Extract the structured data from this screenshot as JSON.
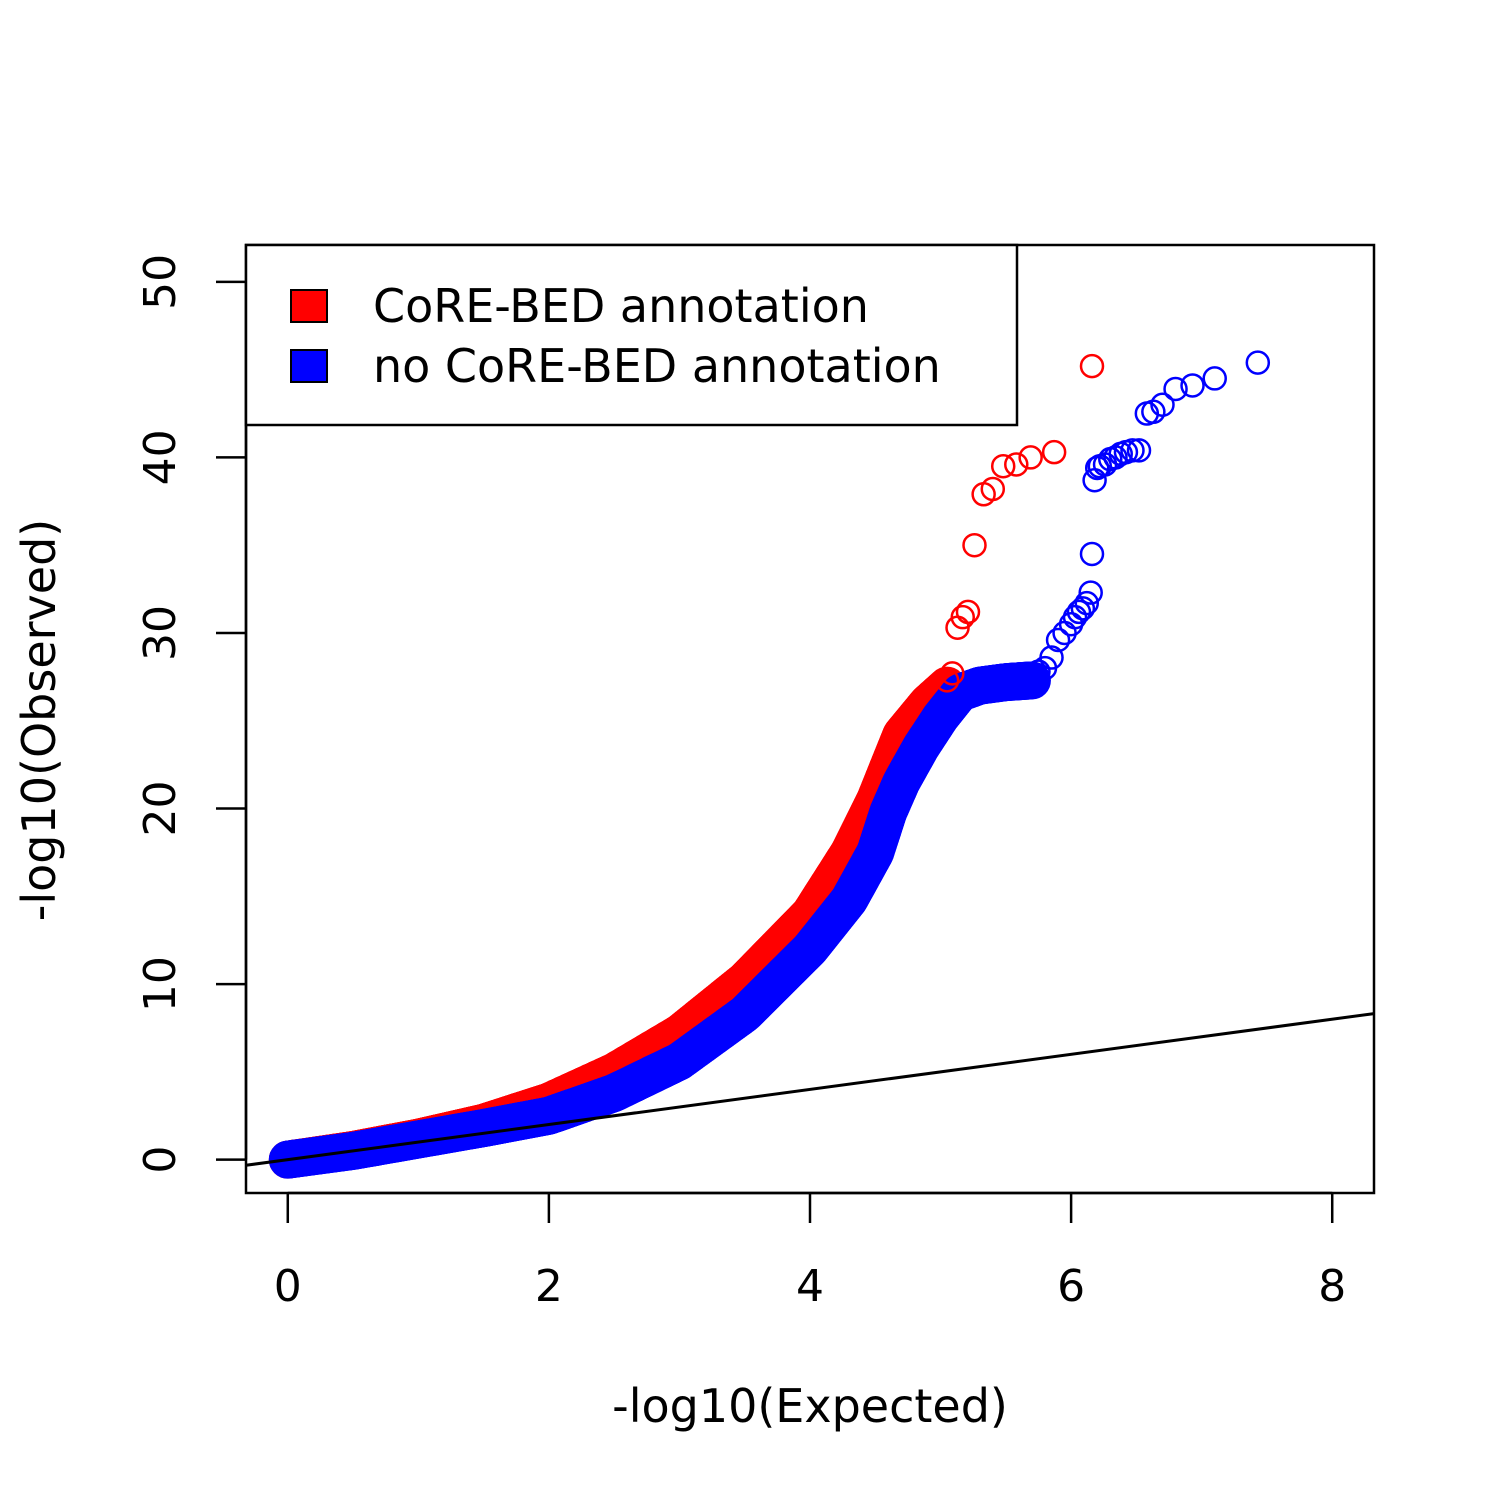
{
  "chart_data": {
    "type": "scatter",
    "xlabel": "-log10(Expected)",
    "ylabel": "-log10(Observed)",
    "xlim": [
      -0.32,
      8.32
    ],
    "ylim": [
      -1.9,
      52.1
    ],
    "x_ticks": [
      0,
      2,
      4,
      6,
      8
    ],
    "x_tick_labels": [
      "0",
      "2",
      "4",
      "6",
      "8"
    ],
    "y_ticks": [
      0,
      10,
      20,
      30,
      40,
      50
    ],
    "y_tick_labels": [
      "0",
      "10",
      "20",
      "30",
      "40",
      "50"
    ],
    "grid": false,
    "legend_position": "top-left",
    "reference_line": {
      "slope": 1,
      "intercept": 0,
      "color": "#000000"
    },
    "series": [
      {
        "name": "CoRE-BED annotation",
        "color": "#ff0000",
        "marker": "open-circle",
        "x": [
          5.05,
          5.09,
          5.13,
          5.17,
          5.21,
          5.26,
          5.33,
          5.4,
          5.48,
          5.58,
          5.69,
          5.87,
          6.16
        ],
        "y": [
          27.3,
          27.7,
          30.3,
          30.9,
          31.2,
          35.0,
          37.9,
          38.2,
          39.5,
          39.6,
          40.0,
          40.3,
          45.2
        ]
      },
      {
        "name": "no CoRE-BED annotation",
        "color": "#0000ff",
        "marker": "open-circle",
        "x": [
          5.75,
          5.8,
          5.85,
          5.9,
          5.95,
          6.0,
          6.03,
          6.06,
          6.09,
          6.12,
          6.15,
          6.16,
          6.18,
          6.2,
          6.22,
          6.26,
          6.3,
          6.34,
          6.38,
          6.42,
          6.47,
          6.52,
          6.58,
          6.63,
          6.7,
          6.8,
          6.93,
          7.1,
          7.43
        ],
        "y": [
          27.8,
          28.0,
          28.6,
          29.6,
          30.0,
          30.5,
          30.9,
          31.2,
          31.4,
          31.7,
          32.3,
          34.5,
          38.7,
          39.4,
          39.5,
          39.6,
          39.9,
          40.0,
          40.2,
          40.3,
          40.4,
          40.4,
          42.5,
          42.6,
          43.0,
          43.9,
          44.1,
          44.5,
          45.4
        ]
      }
    ],
    "dense_curves": [
      {
        "series": "CoRE-BED annotation",
        "color": "#ff0000",
        "x": [
          0,
          0.5,
          1.0,
          1.5,
          2.0,
          2.5,
          3.0,
          3.5,
          4.0,
          4.3,
          4.5,
          4.7,
          4.9,
          5.05
        ],
        "y": [
          0,
          0.55,
          1.25,
          2.1,
          3.3,
          5.0,
          7.2,
          10.2,
          14.0,
          17.5,
          20.5,
          24.2,
          26.0,
          27.0
        ]
      },
      {
        "series": "no CoRE-BED annotation",
        "color": "#0000ff",
        "x": [
          0,
          0.5,
          1.0,
          1.5,
          2.0,
          2.5,
          3.0,
          3.5,
          4.0,
          4.3,
          4.5,
          4.6,
          4.7,
          4.85,
          5.0,
          5.15,
          5.3,
          5.5,
          5.7
        ],
        "y": [
          0,
          0.5,
          1.15,
          1.8,
          2.5,
          3.8,
          5.6,
          8.3,
          12.0,
          14.8,
          17.5,
          19.8,
          21.5,
          23.5,
          25.2,
          26.6,
          27.0,
          27.2,
          27.3
        ]
      }
    ]
  }
}
